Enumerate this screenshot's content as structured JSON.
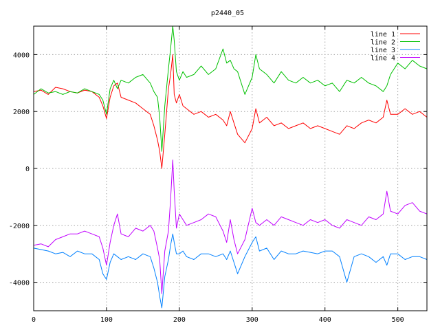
{
  "chart_data": {
    "type": "line",
    "title": "p2440_05",
    "xlabel": "",
    "ylabel": "",
    "xlim": [
      0,
      540
    ],
    "ylim": [
      -5000,
      5000
    ],
    "xticks": [
      0,
      100,
      200,
      300,
      400,
      500
    ],
    "yticks": [
      -4000,
      -2000,
      0,
      2000,
      4000
    ],
    "grid": true,
    "legend_position": "top-right",
    "series": [
      {
        "name": "line 1",
        "color": "#ff0000",
        "x": [
          0,
          10,
          20,
          30,
          40,
          50,
          60,
          70,
          80,
          90,
          95,
          100,
          105,
          110,
          115,
          120,
          130,
          140,
          150,
          160,
          165,
          170,
          173,
          176,
          180,
          185,
          188,
          191,
          193,
          196,
          200,
          205,
          210,
          220,
          230,
          240,
          250,
          260,
          265,
          270,
          275,
          280,
          290,
          300,
          305,
          310,
          320,
          330,
          340,
          350,
          360,
          370,
          380,
          390,
          400,
          410,
          420,
          430,
          440,
          450,
          460,
          470,
          480,
          485,
          490,
          500,
          510,
          520,
          530,
          540
        ],
        "y": [
          2700,
          2750,
          2600,
          2850,
          2800,
          2700,
          2650,
          2750,
          2700,
          2500,
          2200,
          1750,
          2500,
          2900,
          3000,
          2500,
          2400,
          2300,
          2100,
          1900,
          1500,
          1000,
          600,
          0,
          1200,
          2800,
          3300,
          4000,
          2600,
          2300,
          2600,
          2200,
          2100,
          1900,
          2000,
          1800,
          1900,
          1700,
          1500,
          2000,
          1600,
          1200,
          900,
          1400,
          2100,
          1600,
          1800,
          1500,
          1600,
          1400,
          1500,
          1600,
          1400,
          1500,
          1400,
          1300,
          1200,
          1500,
          1400,
          1600,
          1700,
          1600,
          1800,
          2400,
          1900,
          1900,
          2100,
          1900,
          2000,
          1800
        ]
      },
      {
        "name": "line 2",
        "color": "#00c000",
        "x": [
          0,
          10,
          20,
          30,
          40,
          50,
          60,
          70,
          80,
          90,
          95,
          100,
          105,
          110,
          115,
          120,
          130,
          140,
          150,
          160,
          165,
          170,
          173,
          176,
          180,
          185,
          188,
          191,
          193,
          196,
          200,
          205,
          210,
          220,
          230,
          240,
          250,
          260,
          265,
          270,
          275,
          280,
          290,
          300,
          305,
          310,
          320,
          330,
          340,
          350,
          360,
          370,
          380,
          390,
          400,
          410,
          420,
          430,
          440,
          450,
          460,
          470,
          480,
          485,
          490,
          500,
          510,
          520,
          530,
          540
        ],
        "y": [
          2600,
          2800,
          2650,
          2700,
          2600,
          2700,
          2650,
          2800,
          2700,
          2600,
          2400,
          1900,
          2800,
          3100,
          2800,
          3100,
          3000,
          3200,
          3300,
          3000,
          2700,
          2500,
          1800,
          600,
          2200,
          3500,
          4200,
          5000,
          4500,
          3400,
          3100,
          3400,
          3200,
          3300,
          3600,
          3300,
          3500,
          4200,
          3700,
          3800,
          3500,
          3400,
          2600,
          3200,
          4000,
          3500,
          3300,
          3000,
          3400,
          3100,
          3000,
          3200,
          3000,
          3100,
          2900,
          3000,
          2700,
          3100,
          3000,
          3200,
          3000,
          2900,
          2700,
          2900,
          3300,
          3700,
          3500,
          3800,
          3600,
          3500
        ]
      },
      {
        "name": "line 3",
        "color": "#0080ff",
        "x": [
          0,
          10,
          20,
          30,
          40,
          50,
          60,
          70,
          80,
          90,
          95,
          100,
          105,
          110,
          115,
          120,
          130,
          140,
          150,
          160,
          165,
          170,
          173,
          176,
          180,
          185,
          188,
          191,
          193,
          196,
          200,
          205,
          210,
          220,
          230,
          240,
          250,
          260,
          265,
          270,
          275,
          280,
          290,
          300,
          305,
          310,
          320,
          330,
          340,
          350,
          360,
          370,
          380,
          390,
          400,
          410,
          420,
          430,
          440,
          450,
          460,
          470,
          480,
          485,
          490,
          500,
          510,
          520,
          530,
          540
        ],
        "y": [
          -2800,
          -2850,
          -2900,
          -3000,
          -2950,
          -3100,
          -2900,
          -3000,
          -3000,
          -3200,
          -3700,
          -3900,
          -3300,
          -3000,
          -3100,
          -3200,
          -3100,
          -3200,
          -3000,
          -3100,
          -3500,
          -4000,
          -4500,
          -4900,
          -3800,
          -3200,
          -2700,
          -2300,
          -2600,
          -3000,
          -3000,
          -2900,
          -3100,
          -3200,
          -3000,
          -3000,
          -3100,
          -3000,
          -3200,
          -2900,
          -3300,
          -3700,
          -3100,
          -2600,
          -2400,
          -2900,
          -2800,
          -3200,
          -2900,
          -3000,
          -3000,
          -2900,
          -2950,
          -3000,
          -2900,
          -2900,
          -3100,
          -4000,
          -3100,
          -3000,
          -3100,
          -3300,
          -3100,
          -3400,
          -3000,
          -3000,
          -3200,
          -3100,
          -3100,
          -3200
        ]
      },
      {
        "name": "line 4",
        "color": "#c000ff",
        "x": [
          0,
          10,
          20,
          30,
          40,
          50,
          60,
          70,
          80,
          90,
          95,
          100,
          105,
          110,
          115,
          120,
          130,
          140,
          150,
          160,
          165,
          170,
          173,
          176,
          180,
          185,
          188,
          191,
          193,
          196,
          200,
          205,
          210,
          220,
          230,
          240,
          250,
          260,
          265,
          270,
          275,
          280,
          290,
          300,
          305,
          310,
          320,
          330,
          340,
          350,
          360,
          370,
          380,
          390,
          400,
          410,
          420,
          430,
          440,
          450,
          460,
          470,
          480,
          485,
          490,
          500,
          510,
          520,
          530,
          540
        ],
        "y": [
          -2700,
          -2650,
          -2750,
          -2500,
          -2400,
          -2300,
          -2300,
          -2200,
          -2300,
          -2400,
          -2800,
          -3400,
          -2600,
          -2000,
          -1600,
          -2300,
          -2400,
          -2100,
          -2200,
          -2000,
          -2200,
          -2800,
          -3200,
          -4400,
          -2900,
          -2200,
          -1100,
          300,
          -800,
          -2100,
          -1600,
          -1800,
          -2000,
          -1900,
          -1800,
          -1600,
          -1700,
          -2200,
          -2600,
          -1800,
          -2500,
          -3000,
          -2500,
          -1400,
          -1900,
          -2000,
          -1800,
          -2000,
          -1700,
          -1800,
          -1900,
          -2000,
          -1800,
          -1900,
          -1800,
          -2000,
          -2100,
          -1800,
          -1900,
          -2000,
          -1700,
          -1800,
          -1600,
          -800,
          -1500,
          -1600,
          -1300,
          -1200,
          -1500,
          -1600
        ]
      }
    ]
  }
}
